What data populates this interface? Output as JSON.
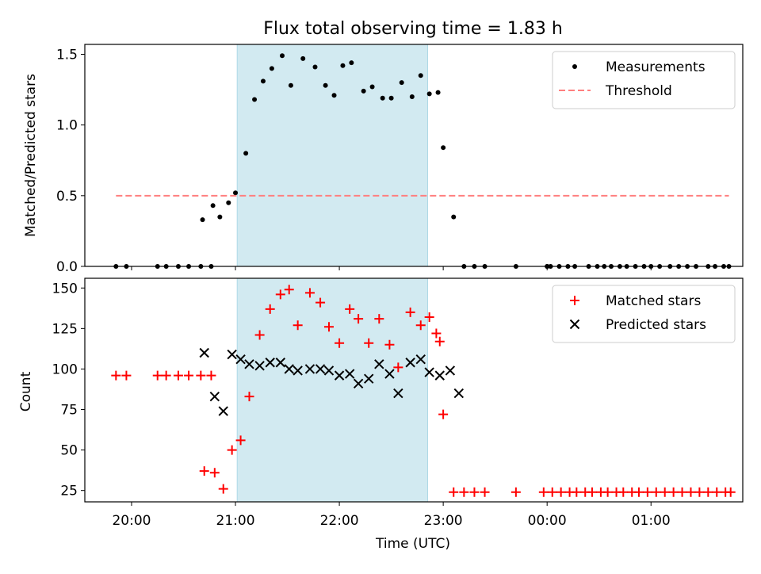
{
  "chart_data": [
    {
      "type": "scatter",
      "title": "Flux total observing time = 1.83 h",
      "xlabel": "",
      "ylabel": "Matched/Predicted stars",
      "ylim": [
        0,
        1.57
      ],
      "yticks": [
        0.0,
        0.5,
        1.0,
        1.5
      ],
      "ytick_labels": [
        "0.0",
        "0.5",
        "1.0",
        "1.5"
      ],
      "legend_position": "top-right",
      "shaded_interval": [
        "21:01",
        "22:51"
      ],
      "shade_color": "#add8e6",
      "series": [
        {
          "name": "Measurements",
          "kind": "points",
          "color": "#000000",
          "x": [
            "19:51",
            "19:57",
            "20:15",
            "20:20",
            "20:27",
            "20:33",
            "20:40",
            "20:46",
            "20:41",
            "20:47",
            "20:51",
            "20:56",
            "21:00",
            "21:06",
            "21:11",
            "21:16",
            "21:21",
            "21:27",
            "21:32",
            "21:39",
            "21:46",
            "21:52",
            "21:57",
            "22:02",
            "22:07",
            "22:14",
            "22:19",
            "22:25",
            "22:30",
            "22:36",
            "22:42",
            "22:47",
            "22:52",
            "22:57",
            "23:00",
            "23:06",
            "23:12",
            "23:18",
            "23:24",
            "23:42",
            "24:00",
            "00:00",
            "00:02",
            "00:07",
            "00:12",
            "00:16",
            "00:24",
            "00:29",
            "00:33",
            "00:37",
            "00:42",
            "00:46",
            "00:51",
            "00:56",
            "01:00",
            "01:05",
            "01:11",
            "01:16",
            "01:21",
            "01:26",
            "01:33",
            "01:37",
            "01:42",
            "01:45"
          ],
          "y": [
            0,
            0,
            0,
            0,
            0,
            0,
            0,
            0,
            0.33,
            0.43,
            0.35,
            0.45,
            0.52,
            0.8,
            1.18,
            1.31,
            1.4,
            1.49,
            1.28,
            1.47,
            1.41,
            1.28,
            1.21,
            1.42,
            1.44,
            1.24,
            1.27,
            1.19,
            1.19,
            1.3,
            1.2,
            1.35,
            1.22,
            1.23,
            0.84,
            0.35,
            0,
            0,
            0,
            0,
            0,
            0,
            0,
            0,
            0,
            0,
            0,
            0,
            0,
            0,
            0,
            0,
            0,
            0,
            0,
            0,
            0,
            0,
            0,
            0,
            0,
            0,
            0,
            0
          ]
        },
        {
          "name": "Threshold",
          "kind": "dashed-line",
          "color": "#ff7f7f",
          "x": [
            "19:51",
            "01:45"
          ],
          "y": [
            0.5,
            0.5
          ]
        }
      ]
    },
    {
      "type": "scatter",
      "title": "",
      "xlabel": "Time (UTC)",
      "ylabel": "Count",
      "ylim": [
        18,
        156
      ],
      "yticks": [
        25,
        50,
        75,
        100,
        125,
        150
      ],
      "ytick_labels": [
        "25",
        "50",
        "75",
        "100",
        "125",
        "150"
      ],
      "xlim": [
        "19:33",
        "01:53"
      ],
      "xticks": [
        "20:00",
        "21:00",
        "22:00",
        "23:00",
        "00:00",
        "01:00"
      ],
      "xtick_labels": [
        "20:00",
        "21:00",
        "22:00",
        "23:00",
        "00:00",
        "01:00"
      ],
      "legend_position": "top-right",
      "shaded_interval": [
        "21:01",
        "22:51"
      ],
      "shade_color": "#add8e6",
      "series": [
        {
          "name": "Matched stars",
          "kind": "plus",
          "color": "#ff0000",
          "x": [
            "19:51",
            "19:57",
            "20:15",
            "20:20",
            "20:27",
            "20:33",
            "20:40",
            "20:46",
            "20:42",
            "20:48",
            "20:53",
            "20:58",
            "21:03",
            "21:08",
            "21:14",
            "21:20",
            "21:26",
            "21:31",
            "21:36",
            "21:43",
            "21:49",
            "21:54",
            "22:00",
            "22:06",
            "22:11",
            "22:17",
            "22:23",
            "22:29",
            "22:34",
            "22:41",
            "22:47",
            "22:52",
            "22:58",
            "22:56",
            "23:00",
            "23:06",
            "23:12",
            "23:18",
            "23:24",
            "23:42",
            "23:58",
            "00:03",
            "00:08",
            "00:13",
            "00:17",
            "00:22",
            "00:26",
            "00:31",
            "00:35",
            "00:40",
            "00:44",
            "00:49",
            "00:53",
            "00:58",
            "01:03",
            "01:08",
            "01:13",
            "01:18",
            "01:23",
            "01:28",
            "01:33",
            "01:38",
            "01:43",
            "01:46"
          ],
          "y": [
            96,
            96,
            96,
            96,
            96,
            96,
            96,
            96,
            37,
            36,
            26,
            50,
            56,
            83,
            121,
            137,
            146,
            149,
            127,
            147,
            141,
            126,
            116,
            137,
            131,
            116,
            131,
            115,
            101,
            135,
            127,
            132,
            117,
            122,
            72,
            24,
            24,
            24,
            24,
            24,
            24,
            24,
            24,
            24,
            24,
            24,
            24,
            24,
            24,
            24,
            24,
            24,
            24,
            24,
            24,
            24,
            24,
            24,
            24,
            24,
            24,
            24,
            24,
            24
          ]
        },
        {
          "name": "Predicted stars",
          "kind": "x",
          "color": "#000000",
          "x": [
            "20:42",
            "20:48",
            "20:53",
            "20:58",
            "21:03",
            "21:08",
            "21:14",
            "21:20",
            "21:26",
            "21:31",
            "21:36",
            "21:43",
            "21:49",
            "21:54",
            "22:00",
            "22:06",
            "22:11",
            "22:17",
            "22:23",
            "22:29",
            "22:34",
            "22:41",
            "22:47",
            "22:52",
            "22:58",
            "23:04",
            "23:09"
          ],
          "y": [
            110,
            83,
            74,
            109,
            106,
            103,
            102,
            104,
            104,
            100,
            99,
            100,
            100,
            99,
            96,
            97,
            91,
            94,
            103,
            97,
            85,
            104,
            106,
            98,
            96,
            99,
            85
          ]
        }
      ]
    }
  ]
}
